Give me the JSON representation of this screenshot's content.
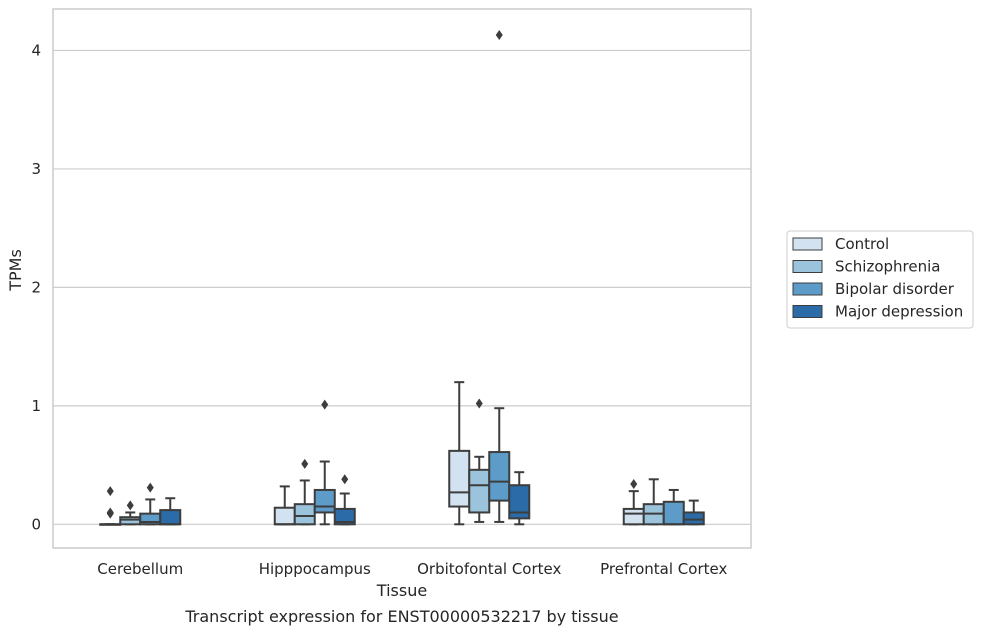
{
  "chart_data": {
    "type": "boxplot",
    "caption": "Transcript expression for ENST00000532217 by tissue",
    "xlabel": "Tissue",
    "ylabel": "TPMs",
    "ylim": [
      -0.2,
      4.35
    ],
    "yticks": [
      0,
      1,
      2,
      3,
      4
    ],
    "grid": true,
    "legend_position": "right",
    "categories": [
      "Cerebellum",
      "Hipppocampus",
      "Orbitofontal Cortex",
      "Prefrontal Cortex"
    ],
    "series": [
      {
        "name": "Control",
        "color": "#d3e2f1",
        "boxes": [
          {
            "whislo": 0,
            "q1": 0,
            "med": 0,
            "q3": 0,
            "whishi": 0,
            "fliers": [
              0.09,
              0.1,
              0.28
            ]
          },
          {
            "whislo": 0,
            "q1": 0,
            "med": 0,
            "q3": 0.14,
            "whishi": 0.32,
            "fliers": []
          },
          {
            "whislo": 0,
            "q1": 0.15,
            "med": 0.27,
            "q3": 0.62,
            "whishi": 1.2,
            "fliers": []
          },
          {
            "whislo": 0,
            "q1": 0,
            "med": 0.09,
            "q3": 0.13,
            "whishi": 0.28,
            "fliers": [
              0.34
            ]
          }
        ]
      },
      {
        "name": "Schizophrenia",
        "color": "#9cc3dc",
        "boxes": [
          {
            "whislo": 0,
            "q1": 0,
            "med": 0.04,
            "q3": 0.06,
            "whishi": 0.1,
            "fliers": [
              0.16
            ]
          },
          {
            "whislo": 0,
            "q1": 0,
            "med": 0.07,
            "q3": 0.17,
            "whishi": 0.37,
            "fliers": [
              0.51
            ]
          },
          {
            "whislo": 0.02,
            "q1": 0.1,
            "med": 0.33,
            "q3": 0.46,
            "whishi": 0.57,
            "fliers": [
              1.02
            ]
          },
          {
            "whislo": 0,
            "q1": 0,
            "med": 0.09,
            "q3": 0.17,
            "whishi": 0.38,
            "fliers": []
          }
        ]
      },
      {
        "name": "Bipolar disorder",
        "color": "#5d9cc9",
        "boxes": [
          {
            "whislo": 0,
            "q1": 0,
            "med": 0.02,
            "q3": 0.09,
            "whishi": 0.21,
            "fliers": [
              0.31
            ]
          },
          {
            "whislo": 0,
            "q1": 0.1,
            "med": 0.15,
            "q3": 0.29,
            "whishi": 0.53,
            "fliers": [
              1.01
            ]
          },
          {
            "whislo": 0.02,
            "q1": 0.2,
            "med": 0.36,
            "q3": 0.61,
            "whishi": 0.98,
            "fliers": [
              4.13
            ]
          },
          {
            "whislo": 0,
            "q1": 0,
            "med": 0,
            "q3": 0.19,
            "whishi": 0.29,
            "fliers": []
          }
        ]
      },
      {
        "name": "Major depression",
        "color": "#2b6ba8",
        "boxes": [
          {
            "whislo": 0,
            "q1": 0,
            "med": 0,
            "q3": 0.12,
            "whishi": 0.22,
            "fliers": []
          },
          {
            "whislo": 0,
            "q1": 0,
            "med": 0.02,
            "q3": 0.13,
            "whishi": 0.26,
            "fliers": [
              0.38
            ]
          },
          {
            "whislo": 0,
            "q1": 0.05,
            "med": 0.1,
            "q3": 0.33,
            "whishi": 0.44,
            "fliers": []
          },
          {
            "whislo": 0,
            "q1": 0,
            "med": 0.04,
            "q3": 0.1,
            "whishi": 0.2,
            "fliers": []
          }
        ]
      }
    ]
  }
}
